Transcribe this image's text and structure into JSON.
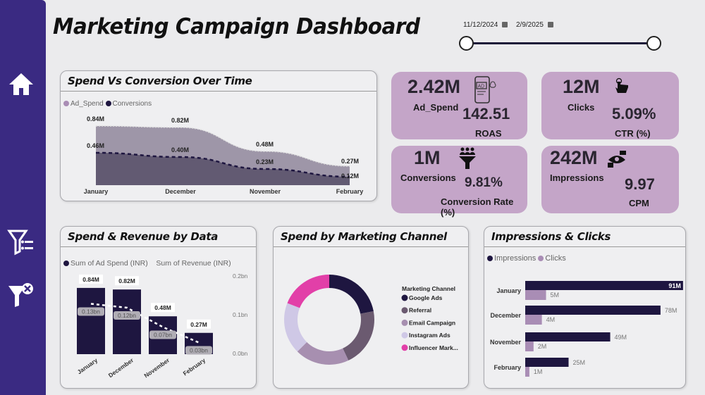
{
  "header": {
    "title": "Marketing Campaign Dashboard",
    "date_start": "11/12/2024",
    "date_end": "2/9/2025",
    "date_range_fraction": [
      0,
      1
    ]
  },
  "sidebar": {
    "items": [
      {
        "icon": "home-icon"
      },
      {
        "icon": "filter-list-icon"
      },
      {
        "icon": "clear-filter-icon"
      }
    ]
  },
  "colors": {
    "sidebar": "#3a2a82",
    "card": "#c4a5c8",
    "dark": "#1e1640",
    "pink": "#e23fa8"
  },
  "kpis": [
    {
      "value": "2.42M",
      "label": "Ad_Spend",
      "sub_value": "142.51",
      "sub_label": "ROAS",
      "icon": "ad-phone-icon"
    },
    {
      "value": "12M",
      "label": "Clicks",
      "sub_value": "5.09%",
      "sub_label": "CTR (%)",
      "icon": "click-hand-icon"
    },
    {
      "value": "1M",
      "label": "Conversions",
      "sub_value": "9.81%",
      "sub_label": "Conversion Rate (%)",
      "icon": "funnel-people-icon"
    },
    {
      "value": "242M",
      "label": "Impressions",
      "sub_value": "9.97",
      "sub_label": "CPM",
      "icon": "eye-icon"
    }
  ],
  "panels": {
    "spend_conv": {
      "title": "Spend  Vs Conversion Over Time",
      "legend": [
        "Ad_Spend",
        "Conversions"
      ]
    },
    "spend_rev": {
      "title": "Spend & Revenue by Data",
      "legend": [
        "Sum of Ad Spend (INR)",
        "Sum of Revenue (INR)"
      ]
    },
    "channel": {
      "title": "Spend by Marketing Channel",
      "legend_title": "Marketing Channel"
    },
    "imp_clicks": {
      "title": "Impressions & Clicks",
      "legend": [
        "Impressions",
        "Clicks"
      ]
    }
  },
  "chart_data": [
    {
      "type": "area",
      "categories": [
        "January",
        "December",
        "November",
        "February"
      ],
      "series": [
        {
          "name": "Ad_Spend",
          "values": [
            0.84,
            0.82,
            0.48,
            0.27
          ],
          "labels": [
            "0.84M",
            "0.82M",
            "0.48M",
            "0.27M"
          ],
          "color": "#9e96a8"
        },
        {
          "name": "Conversions",
          "values": [
            0.46,
            0.4,
            0.23,
            0.12
          ],
          "labels": [
            "0.46M",
            "0.40M",
            "0.23M",
            "0.12M"
          ],
          "color": "#625a72"
        }
      ]
    },
    {
      "type": "bar",
      "categories": [
        "January",
        "December",
        "November",
        "February"
      ],
      "series": [
        {
          "name": "Sum of Ad Spend (INR)",
          "values": [
            0.84,
            0.82,
            0.48,
            0.27
          ],
          "labels": [
            "0.84M",
            "0.82M",
            "0.48M",
            "0.27M"
          ],
          "color": "#1e1640"
        },
        {
          "name": "Sum of Revenue (INR)",
          "values": [
            0.13,
            0.12,
            0.07,
            0.03
          ],
          "labels": [
            "0.13bn",
            "0.12bn",
            "0.07bn",
            "0.03bn"
          ],
          "color": "#ffffff"
        }
      ],
      "y2_ticks": [
        "0.2bn",
        "0.1bn",
        "0.0bn"
      ],
      "y2lim": [
        0,
        0.2
      ]
    },
    {
      "type": "pie",
      "donut": true,
      "categories": [
        "Google Ads",
        "Referral",
        "Email Campaign",
        "Instagram Ads",
        "Influencer Mark..."
      ],
      "values": [
        22,
        21,
        19.5,
        18.5,
        19
      ],
      "colors": [
        "#1e1640",
        "#6b5a70",
        "#a78fb0",
        "#cfc8e6",
        "#e23fa8"
      ]
    },
    {
      "type": "bar",
      "orientation": "horizontal",
      "categories": [
        "January",
        "December",
        "November",
        "February"
      ],
      "series": [
        {
          "name": "Impressions",
          "values": [
            91,
            78,
            49,
            25
          ],
          "labels": [
            "91M",
            "78M",
            "49M",
            "25M"
          ],
          "color": "#1e1640"
        },
        {
          "name": "Clicks",
          "values": [
            5,
            4,
            2,
            1
          ],
          "labels": [
            "5M",
            "4M",
            "2M",
            "1M"
          ],
          "color": "#a98db5"
        }
      ]
    }
  ]
}
